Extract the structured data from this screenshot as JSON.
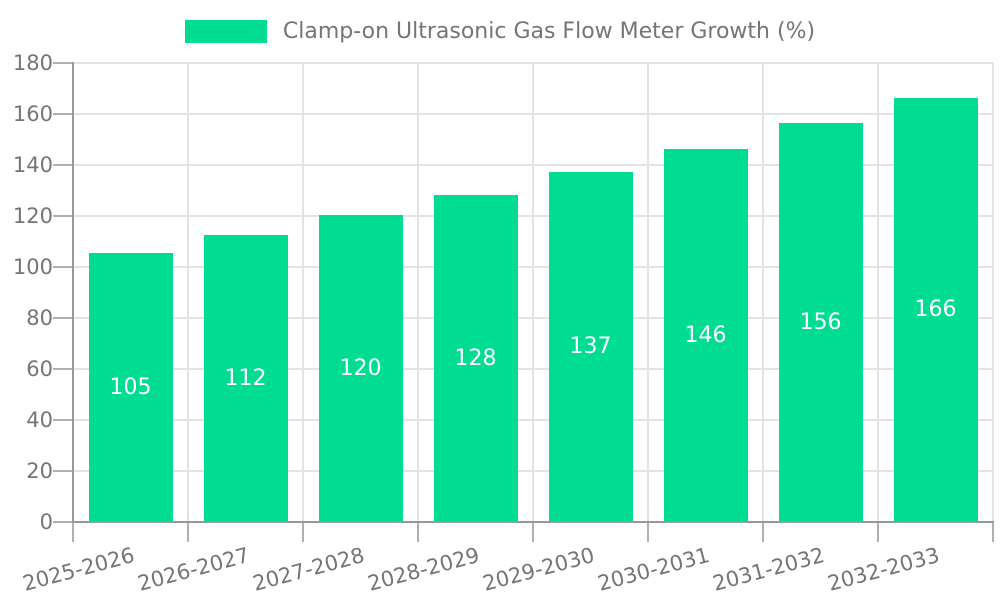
{
  "chart_data": {
    "type": "bar",
    "title": "Clamp-on Ultrasonic Gas Flow Meter Growth (%)",
    "legend": {
      "label": "Clamp-on Ultrasonic Gas Flow Meter Growth (%)",
      "position": "top-center"
    },
    "categories": [
      "2025-2026",
      "2026-2027",
      "2027-2028",
      "2028-2029",
      "2029-2030",
      "2030-2031",
      "2031-2032",
      "2032-2033"
    ],
    "series": [
      {
        "name": "Clamp-on Ultrasonic Gas Flow Meter Growth (%)",
        "values": [
          105,
          112,
          120,
          128,
          137,
          146,
          156,
          166
        ]
      }
    ],
    "values": [
      105,
      112,
      120,
      128,
      137,
      146,
      156,
      166
    ],
    "value_label_position": "inside-center",
    "xlabel": "",
    "ylabel": "",
    "ylim": [
      0,
      180
    ],
    "ytick_step": 20,
    "yticks": [
      0,
      20,
      40,
      60,
      80,
      100,
      120,
      140,
      160,
      180
    ],
    "grid": true,
    "x_label_rotation_deg": -15
  },
  "colors": {
    "bar": "#00dc92",
    "value_label": "#ffffff",
    "gridline": "#e3e3e3",
    "axis_line": "#999999",
    "tick_mark": "#b0b0b0",
    "tick_label": "#757575",
    "legend_text": "#757575",
    "background": "#ffffff"
  }
}
